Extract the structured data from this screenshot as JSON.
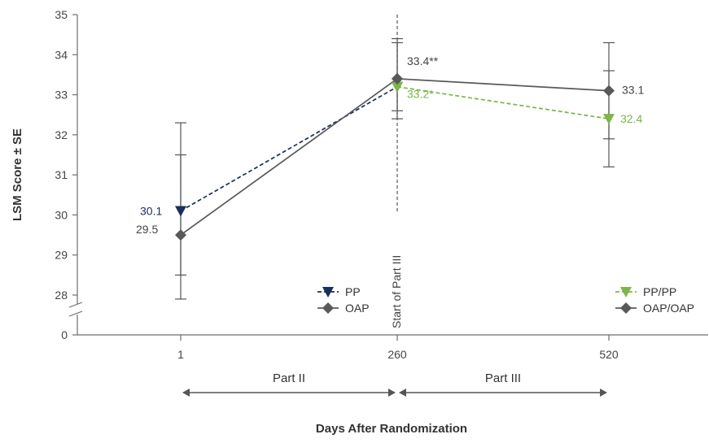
{
  "chart_data": {
    "type": "line",
    "title": "",
    "xlabel": "Days After Randomization",
    "ylabel": "LSM Score ± SE",
    "x_ticks": [
      "1",
      "260",
      "520"
    ],
    "y_ticks": [
      "0",
      "28",
      "29",
      "30",
      "31",
      "32",
      "33",
      "34",
      "35"
    ],
    "ylim": [
      28,
      35
    ],
    "axis_break": true,
    "grid": false,
    "vline": {
      "x": 260,
      "label": "Start of Part III"
    },
    "series": [
      {
        "name": "PP",
        "color": "#1a2e5a",
        "line_style": "dashed",
        "marker": "triangle-down",
        "points": [
          {
            "x": 1,
            "y": 30.1,
            "label": "30.1"
          },
          {
            "x": 260,
            "y": 33.2,
            "label": ""
          }
        ]
      },
      {
        "name": "OAP",
        "color": "#595959",
        "line_style": "solid",
        "marker": "diamond",
        "points": [
          {
            "x": 1,
            "y": 29.5,
            "label": "29.5",
            "se_low": 27.9,
            "se_high": 31.5,
            "ci_low": 28.5,
            "ci_high": 32.3
          },
          {
            "x": 260,
            "y": 33.4,
            "label": "",
            "se_low": 32.4,
            "se_high": 34.3
          }
        ]
      },
      {
        "name": "PP/PP",
        "color": "#7ab648",
        "line_style": "dashed",
        "marker": "triangle-down",
        "points": [
          {
            "x": 260,
            "y": 33.2,
            "label": "33.2*"
          },
          {
            "x": 520,
            "y": 32.4,
            "label": "32.4"
          }
        ]
      },
      {
        "name": "OAP/OAP",
        "color": "#595959",
        "line_style": "solid",
        "marker": "diamond",
        "points": [
          {
            "x": 260,
            "y": 33.4,
            "label": "33.4**",
            "se_low": 32.6,
            "se_high": 34.4
          },
          {
            "x": 520,
            "y": 33.1,
            "label": "33.1",
            "se_low": 31.9,
            "se_high": 33.6,
            "ci_low": 31.2,
            "ci_high": 34.3
          }
        ]
      }
    ],
    "legend": [
      {
        "group": "left",
        "items": [
          "PP",
          "OAP"
        ]
      },
      {
        "group": "right",
        "items": [
          "PP/PP",
          "OAP/OAP"
        ]
      }
    ],
    "periods": [
      {
        "label": "Part II",
        "from": 1,
        "to": 260
      },
      {
        "label": "Part III",
        "from": 260,
        "to": 520
      }
    ]
  }
}
